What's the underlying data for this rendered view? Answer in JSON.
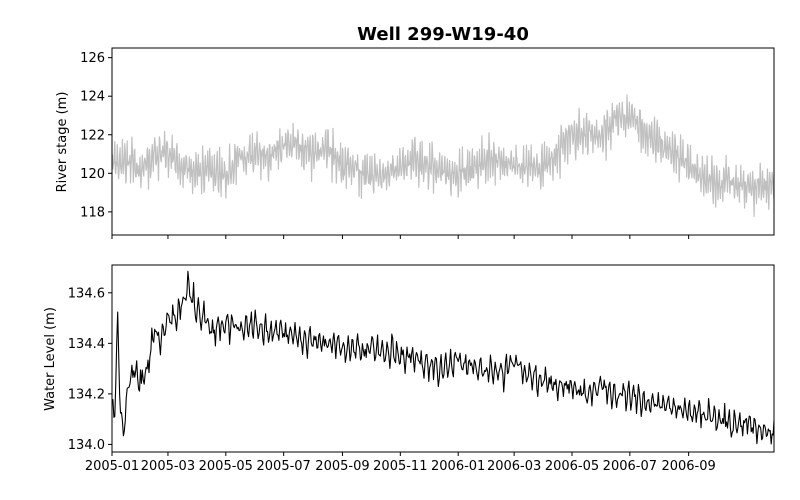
{
  "chart_data": [
    {
      "type": "line",
      "title": "Well 299-W19-40",
      "xlabel": "",
      "ylabel": "River stage (m)",
      "ylim": [
        116.8,
        126.5
      ],
      "yticks": [
        118,
        120,
        122,
        124,
        126
      ],
      "xlim": [
        "2005-01-01",
        "2006-11-30"
      ],
      "xtick_labels": [],
      "grid": false,
      "color": "#c0c0c0",
      "series": [
        {
          "points": [
            [
              "2005-01-01",
              120.3
            ],
            [
              "2005-01-15",
              120.6
            ],
            [
              "2005-02-01",
              120.2
            ],
            [
              "2005-02-15",
              120.9
            ],
            [
              "2005-03-01",
              121.0
            ],
            [
              "2005-03-15",
              120.3
            ],
            [
              "2005-04-01",
              120.0
            ],
            [
              "2005-04-15",
              120.2
            ],
            [
              "2005-05-01",
              119.9
            ],
            [
              "2005-05-15",
              120.8
            ],
            [
              "2005-06-01",
              121.0
            ],
            [
              "2005-06-15",
              120.9
            ],
            [
              "2005-07-01",
              121.4
            ],
            [
              "2005-07-15",
              121.5
            ],
            [
              "2005-08-01",
              121.0
            ],
            [
              "2005-08-15",
              121.3
            ],
            [
              "2005-09-01",
              120.4
            ],
            [
              "2005-09-15",
              120.2
            ],
            [
              "2005-10-01",
              119.8
            ],
            [
              "2005-10-15",
              120.0
            ],
            [
              "2005-11-01",
              120.3
            ],
            [
              "2005-11-15",
              120.6
            ],
            [
              "2005-12-01",
              120.4
            ],
            [
              "2005-12-15",
              120.0
            ],
            [
              "2006-01-01",
              119.9
            ],
            [
              "2006-01-15",
              120.2
            ],
            [
              "2006-02-01",
              120.8
            ],
            [
              "2006-02-15",
              120.6
            ],
            [
              "2006-03-01",
              120.4
            ],
            [
              "2006-03-15",
              120.3
            ],
            [
              "2006-04-01",
              120.1
            ],
            [
              "2006-04-15",
              121.0
            ],
            [
              "2006-05-01",
              122.0
            ],
            [
              "2006-05-15",
              122.1
            ],
            [
              "2006-06-01",
              121.9
            ],
            [
              "2006-06-15",
              122.8
            ],
            [
              "2006-07-01",
              123.0
            ],
            [
              "2006-07-15",
              122.2
            ],
            [
              "2006-08-01",
              121.5
            ],
            [
              "2006-08-15",
              121.0
            ],
            [
              "2006-09-01",
              120.4
            ],
            [
              "2006-09-15",
              119.8
            ],
            [
              "2006-10-01",
              119.5
            ],
            [
              "2006-10-15",
              119.6
            ],
            [
              "2006-11-01",
              119.2
            ],
            [
              "2006-11-15",
              119.3
            ],
            [
              "2006-11-30",
              119.4
            ]
          ]
        }
      ]
    },
    {
      "type": "line",
      "title": "",
      "xlabel": "",
      "ylabel": "Water Level (m)",
      "ylim": [
        133.97,
        134.71
      ],
      "yticks": [
        134.0,
        134.2,
        134.4,
        134.6
      ],
      "ytick_labels": [
        "134.0",
        "134.2",
        "134.4",
        "134.6"
      ],
      "xlim": [
        "2005-01-01",
        "2006-11-30"
      ],
      "xtick_labels": [
        "2005-01",
        "2005-03",
        "2005-05",
        "2005-07",
        "2005-09",
        "2005-11",
        "2006-01",
        "2006-03",
        "2006-05",
        "2006-07",
        "2006-09"
      ],
      "xtick_dates": [
        "2005-01-01",
        "2005-03-01",
        "2005-05-01",
        "2005-07-01",
        "2005-09-01",
        "2005-11-01",
        "2006-01-01",
        "2006-03-01",
        "2006-05-01",
        "2006-07-01",
        "2006-09-01"
      ],
      "grid": false,
      "color": "#000000",
      "series": [
        {
          "points": [
            [
              "2005-01-01",
              134.15
            ],
            [
              "2005-01-04",
              134.12
            ],
            [
              "2005-01-07",
              134.52
            ],
            [
              "2005-01-10",
              134.13
            ],
            [
              "2005-01-13",
              134.05
            ],
            [
              "2005-01-18",
              134.22
            ],
            [
              "2005-01-24",
              134.28
            ],
            [
              "2005-02-01",
              134.25
            ],
            [
              "2005-02-08",
              134.31
            ],
            [
              "2005-02-15",
              134.45
            ],
            [
              "2005-02-22",
              134.41
            ],
            [
              "2005-03-01",
              134.52
            ],
            [
              "2005-03-08",
              134.48
            ],
            [
              "2005-03-15",
              134.55
            ],
            [
              "2005-03-22",
              134.62
            ],
            [
              "2005-04-01",
              134.52
            ],
            [
              "2005-04-10",
              134.5
            ],
            [
              "2005-04-20",
              134.45
            ],
            [
              "2005-05-01",
              134.48
            ],
            [
              "2005-05-15",
              134.46
            ],
            [
              "2005-06-01",
              134.47
            ],
            [
              "2005-06-15",
              134.44
            ],
            [
              "2005-07-01",
              134.44
            ],
            [
              "2005-07-15",
              134.42
            ],
            [
              "2005-08-01",
              134.41
            ],
            [
              "2005-08-15",
              134.4
            ],
            [
              "2005-09-01",
              134.39
            ],
            [
              "2005-09-15",
              134.37
            ],
            [
              "2005-10-01",
              134.38
            ],
            [
              "2005-10-15",
              134.37
            ],
            [
              "2005-11-01",
              134.36
            ],
            [
              "2005-11-15",
              134.34
            ],
            [
              "2005-12-01",
              134.32
            ],
            [
              "2005-12-15",
              134.3
            ],
            [
              "2006-01-01",
              134.33
            ],
            [
              "2006-01-15",
              134.31
            ],
            [
              "2006-02-01",
              134.3
            ],
            [
              "2006-02-15",
              134.27
            ],
            [
              "2006-03-01",
              134.32
            ],
            [
              "2006-03-15",
              134.28
            ],
            [
              "2006-04-01",
              134.25
            ],
            [
              "2006-04-15",
              134.23
            ],
            [
              "2006-05-01",
              134.22
            ],
            [
              "2006-05-15",
              134.2
            ],
            [
              "2006-06-01",
              134.23
            ],
            [
              "2006-06-15",
              134.19
            ],
            [
              "2006-07-01",
              134.2
            ],
            [
              "2006-07-15",
              134.16
            ],
            [
              "2006-08-01",
              134.15
            ],
            [
              "2006-08-15",
              134.14
            ],
            [
              "2006-09-01",
              134.13
            ],
            [
              "2006-09-15",
              134.12
            ],
            [
              "2006-10-01",
              134.1
            ],
            [
              "2006-10-15",
              134.08
            ],
            [
              "2006-11-01",
              134.09
            ],
            [
              "2006-11-15",
              134.06
            ],
            [
              "2006-11-30",
              134.05
            ]
          ]
        }
      ]
    }
  ]
}
